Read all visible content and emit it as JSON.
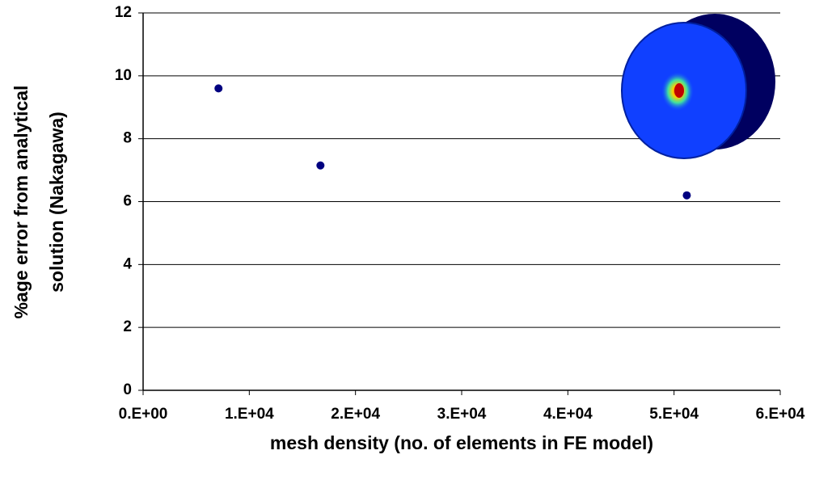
{
  "chart_data": {
    "type": "scatter",
    "xlabel": "mesh density (no. of elements in FE model)",
    "ylabel": [
      "%age error from analytical",
      "solution (Nakagawa)"
    ],
    "series": [
      {
        "color": "#000080",
        "x": [
          7100,
          16700,
          51200
        ],
        "values": [
          9.6,
          7.15,
          6.2
        ]
      }
    ],
    "xlim": [
      0,
      60000
    ],
    "xticks": [
      {
        "value": 0,
        "label": "0.E+00"
      },
      {
        "value": 10000,
        "label": "1.E+04"
      },
      {
        "value": 20000,
        "label": "2.E+04"
      },
      {
        "value": 30000,
        "label": "3.E+04"
      },
      {
        "value": 40000,
        "label": "4.E+04"
      },
      {
        "value": 50000,
        "label": "5.E+04"
      },
      {
        "value": 60000,
        "label": "6.E+04"
      }
    ],
    "ylim": [
      0,
      12
    ],
    "yticks": [
      0,
      2,
      4,
      6,
      8,
      10,
      12
    ],
    "grid": true
  }
}
